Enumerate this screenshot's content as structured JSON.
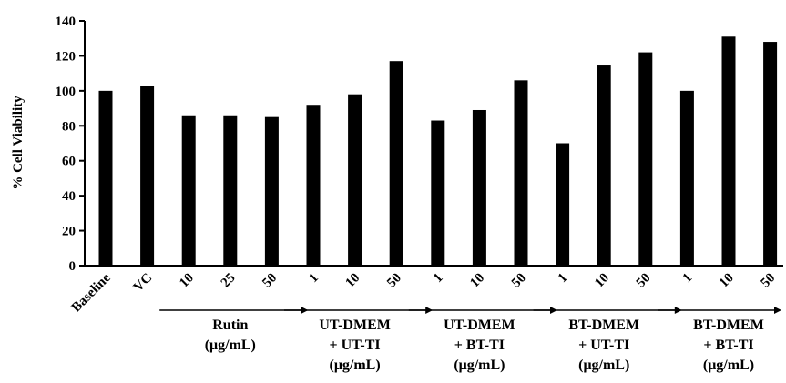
{
  "chart_data": {
    "type": "bar",
    "title": "",
    "xlabel": "",
    "ylabel": "% Cell Viability",
    "ylim": [
      0,
      140
    ],
    "yticks": [
      "0",
      "20",
      "40",
      "60",
      "80",
      "100",
      "120",
      "140"
    ],
    "bar_color": "#000000",
    "grid": false,
    "legend": "none",
    "categories": [
      "Baseline",
      "VC",
      "10",
      "25",
      "50",
      "1",
      "10",
      "50",
      "1",
      "10",
      "50",
      "1",
      "10",
      "50",
      "1",
      "10",
      "50"
    ],
    "values": [
      100,
      103,
      86,
      86,
      85,
      92,
      98,
      117,
      83,
      89,
      106,
      70,
      115,
      122,
      100,
      131,
      128
    ],
    "groups": [
      {
        "lines": [
          "Rutin",
          "(μg/mL)"
        ],
        "start": 2,
        "end": 4
      },
      {
        "lines": [
          "UT-DMEM",
          "+ UT-TI",
          "(μg/mL)"
        ],
        "start": 5,
        "end": 7
      },
      {
        "lines": [
          "UT-DMEM",
          "+ BT-TI",
          "(μg/mL)"
        ],
        "start": 8,
        "end": 10
      },
      {
        "lines": [
          "BT-DMEM",
          "+ UT-TI",
          "(μg/mL)"
        ],
        "start": 11,
        "end": 13
      },
      {
        "lines": [
          "BT-DMEM",
          "+ BT-TI",
          "(μg/mL)"
        ],
        "start": 14,
        "end": 16
      }
    ]
  }
}
